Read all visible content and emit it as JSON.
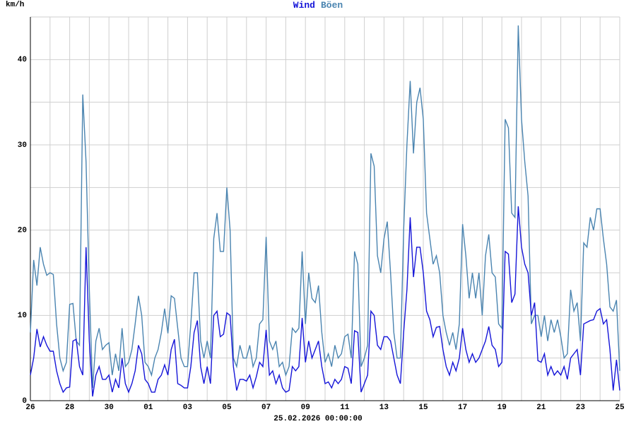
{
  "chart_data": {
    "type": "line",
    "legend_title": true,
    "y_unit": "km/h",
    "x_label": "25.02.2026 00:00:00",
    "x": [
      0,
      4,
      8,
      12,
      16,
      20,
      24,
      28,
      32,
      36,
      40,
      44,
      48,
      52,
      56,
      60,
      64,
      68,
      72,
      76,
      80,
      84,
      88,
      92,
      96,
      100,
      104,
      108,
      112,
      116,
      120,
      124,
      128,
      132,
      136,
      140,
      144,
      148,
      152,
      156,
      160,
      164,
      168,
      172,
      176,
      180,
      184,
      188,
      192,
      196,
      200,
      204,
      208,
      212,
      216,
      220,
      224,
      228,
      232,
      236,
      240,
      244,
      248,
      252,
      256,
      260,
      264,
      268,
      272,
      276,
      280,
      284,
      288,
      292,
      296,
      300,
      304,
      308,
      312,
      316,
      320,
      324,
      328,
      332,
      336,
      340,
      344,
      348,
      352,
      356,
      360,
      364,
      368,
      372,
      376,
      380,
      384,
      388,
      392,
      396,
      400,
      404,
      408,
      412,
      416,
      420,
      424,
      428,
      432,
      436,
      440,
      444,
      448,
      452,
      456,
      460,
      464,
      468,
      472,
      476,
      480,
      484,
      488,
      492,
      496,
      500,
      504,
      508,
      512,
      516,
      520,
      524,
      528,
      532,
      536,
      540,
      544,
      548,
      552,
      556,
      560,
      564,
      568,
      572,
      576,
      580,
      584,
      588,
      592,
      596,
      600,
      604,
      608,
      612,
      616,
      620,
      624,
      628,
      632,
      636,
      640,
      644,
      648,
      652,
      656,
      660,
      664,
      668,
      672,
      676,
      680,
      684,
      688,
      692,
      696,
      700,
      704,
      708,
      712,
      716,
      720
    ],
    "series": [
      {
        "name": "Wind",
        "color": "#1515d8",
        "values": [
          3,
          5,
          8.4,
          6.3,
          7.5,
          6.5,
          5.8,
          5.8,
          3.5,
          2,
          1,
          1.5,
          1.6,
          7,
          7.2,
          4,
          3,
          18,
          7,
          0.5,
          3,
          4,
          2.5,
          2.5,
          3,
          1,
          2.5,
          1.5,
          5,
          2,
          1,
          2,
          3.5,
          6.5,
          5.5,
          2.5,
          2,
          1,
          1,
          2.5,
          3,
          4.2,
          3,
          6,
          7.2,
          2,
          1.8,
          1.5,
          1.5,
          4,
          8,
          9.4,
          4,
          2,
          4,
          2,
          10,
          10.5,
          7.5,
          7.8,
          10.3,
          10,
          4,
          1.2,
          2.5,
          2.5,
          2.3,
          3,
          1.5,
          2.8,
          4.5,
          4,
          8.3,
          3,
          3.5,
          2,
          3,
          1.5,
          1,
          1.2,
          4,
          3.5,
          4,
          9.7,
          4.5,
          7,
          5,
          6,
          7,
          4,
          2,
          2.2,
          1.5,
          2.5,
          2,
          2.5,
          4,
          3.8,
          2,
          8.2,
          8,
          1,
          2,
          3,
          10.5,
          10,
          6.5,
          6,
          7.5,
          7.5,
          7,
          5,
          3,
          2,
          8,
          13,
          21.5,
          14.5,
          18,
          18,
          15,
          10.5,
          9.5,
          7.5,
          8.6,
          8.7,
          6,
          4,
          3,
          4.5,
          3.5,
          5,
          8.5,
          6,
          4.5,
          5.5,
          4.5,
          5,
          6,
          7,
          8.7,
          6.5,
          6,
          4,
          4.5,
          17.5,
          17.2,
          11.5,
          12.5,
          22.8,
          18,
          16,
          15,
          10,
          11.5,
          4.7,
          4.5,
          5.5,
          3,
          4,
          3,
          3.5,
          3,
          4,
          2.5,
          5,
          5.5,
          6,
          3,
          9,
          9.2,
          9.4,
          9.5,
          10.5,
          10.8,
          9,
          9.5,
          6,
          1.2,
          4.8,
          1.2
        ]
      },
      {
        "name": "Böen",
        "color": "#4a84b0",
        "values": [
          8,
          16.5,
          13.5,
          18,
          16,
          14.7,
          15,
          14.8,
          9,
          5,
          3.5,
          4.5,
          11.3,
          11.4,
          7,
          6.5,
          35.9,
          28,
          13,
          1.5,
          7,
          8.5,
          6,
          6.5,
          6.8,
          3,
          5.5,
          3.5,
          8.5,
          4,
          4.5,
          6,
          9,
          12.3,
          10,
          4.5,
          4,
          3,
          5,
          6,
          8,
          10.8,
          7.9,
          12.3,
          12,
          8.5,
          5,
          4,
          4,
          9,
          15,
          15,
          7,
          5,
          7,
          5,
          19,
          22,
          17.5,
          17.5,
          25,
          20,
          5,
          4,
          6.5,
          5,
          5,
          6.5,
          4,
          5,
          9,
          9.5,
          19.2,
          7,
          6,
          7,
          4,
          4.5,
          3,
          4,
          8.5,
          8,
          8.5,
          17.5,
          9,
          15,
          12,
          11.5,
          13.5,
          8,
          4.5,
          5.5,
          4,
          6.5,
          5,
          5.5,
          7.5,
          7.8,
          5,
          17.5,
          16,
          4,
          5,
          6.5,
          29,
          27.5,
          17,
          15,
          19,
          21,
          15,
          8,
          5,
          5,
          20,
          30,
          37.5,
          29,
          35,
          36.7,
          33,
          22,
          19,
          16,
          17,
          15,
          10,
          8,
          6.5,
          8,
          6,
          9,
          20.7,
          17,
          12,
          15,
          12,
          15,
          10,
          17,
          19.5,
          15,
          14.5,
          9,
          8.5,
          33,
          32,
          22,
          21.5,
          44,
          33,
          28,
          24,
          9,
          10,
          10,
          7.5,
          10,
          7,
          9.5,
          8,
          9.5,
          7.5,
          5,
          5.5,
          13,
          10.5,
          11.5,
          7,
          18.5,
          18,
          21.5,
          20,
          22.5,
          22.5,
          19,
          16,
          11,
          10.5,
          11.8,
          3.5
        ]
      }
    ],
    "xlim": [
      0,
      720
    ],
    "xticks": [
      {
        "value": 0,
        "label": "26"
      },
      {
        "value": 48,
        "label": "28"
      },
      {
        "value": 96,
        "label": "30"
      },
      {
        "value": 144,
        "label": "01"
      },
      {
        "value": 192,
        "label": "03"
      },
      {
        "value": 240,
        "label": "05"
      },
      {
        "value": 288,
        "label": "07"
      },
      {
        "value": 336,
        "label": "09"
      },
      {
        "value": 384,
        "label": "11"
      },
      {
        "value": 432,
        "label": "13"
      },
      {
        "value": 480,
        "label": "15"
      },
      {
        "value": 528,
        "label": "17"
      },
      {
        "value": 576,
        "label": "19"
      },
      {
        "value": 624,
        "label": "21"
      },
      {
        "value": 672,
        "label": "23"
      },
      {
        "value": 720,
        "label": "25"
      }
    ],
    "x_minor_ticks": [
      24,
      72,
      120,
      168,
      216,
      264,
      312,
      360,
      408,
      456,
      504,
      552,
      600,
      648,
      696
    ],
    "ylim": [
      0,
      45
    ],
    "yticks": [
      0,
      10,
      20,
      30,
      40
    ],
    "y_minor_ticks": [
      5,
      15,
      25,
      35,
      45
    ],
    "grid": true
  }
}
